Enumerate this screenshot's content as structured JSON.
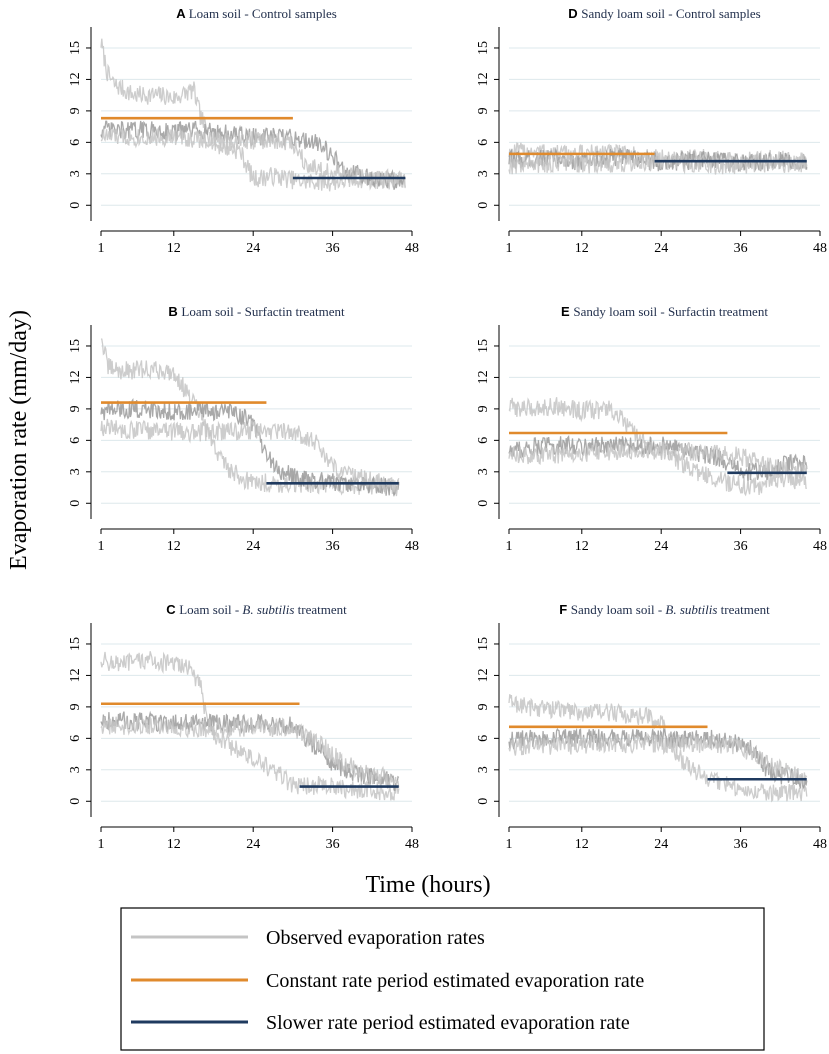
{
  "figure": {
    "ylabel": "Evaporation rate (mm/day)",
    "xlabel": "Time (hours)"
  },
  "colors": {
    "observed": "#c4c4c4",
    "observed_dark": "#9a9a9a",
    "constant": "#e08a2c",
    "slower": "#1f3a5f",
    "grid": "#dde8ec",
    "axis": "#000000"
  },
  "legend": {
    "items": [
      {
        "key": "observed",
        "label": "Observed evaporation rates"
      },
      {
        "key": "constant",
        "label": "Constant rate period estimated evaporation rate"
      },
      {
        "key": "slower",
        "label": "Slower rate period estimated evaporation rate"
      }
    ]
  },
  "chart_data": [
    {
      "id": "A",
      "letter": "A",
      "title": "Loam soil - Control samples",
      "italic": "",
      "title_suffix": "",
      "type": "line",
      "xlim": [
        1,
        48
      ],
      "ylim": [
        -1.5,
        17
      ],
      "xticks": [
        1,
        12,
        24,
        36,
        48
      ],
      "yticks": [
        0,
        3,
        6,
        9,
        12,
        15
      ],
      "constant": {
        "x0": 1,
        "x1": 30,
        "y": 8.3
      },
      "slower": {
        "x0": 30,
        "x1": 47,
        "y": 2.6
      },
      "observed": [
        {
          "x": [
            1,
            2,
            3,
            6,
            10,
            12,
            15,
            16,
            18,
            22,
            24,
            27,
            31,
            36,
            40,
            44,
            47
          ],
          "y": [
            15.5,
            12.5,
            11.5,
            10.5,
            10.5,
            10.2,
            11,
            8.5,
            5.8,
            5.2,
            2.5,
            2.8,
            2.3,
            2.2,
            2.5,
            2.4,
            2.2
          ]
        },
        {
          "x": [
            1,
            4,
            8,
            12,
            16,
            20,
            24,
            27,
            30,
            34,
            38,
            44,
            47
          ],
          "y": [
            7.2,
            7.1,
            7.2,
            7,
            7.2,
            6.8,
            6.5,
            6.5,
            6.4,
            6,
            3.2,
            2.4,
            2.2
          ]
        },
        {
          "x": [
            1,
            6,
            12,
            18,
            24,
            30,
            32,
            36,
            42,
            47
          ],
          "y": [
            6.6,
            6.5,
            6.5,
            6.2,
            6.2,
            6,
            4,
            3,
            2.6,
            2.4
          ]
        }
      ]
    },
    {
      "id": "D",
      "letter": "D",
      "title": "Sandy loam soil - Control samples",
      "italic": "",
      "title_suffix": "",
      "type": "line",
      "xlim": [
        1,
        48
      ],
      "ylim": [
        -1.5,
        17
      ],
      "xticks": [
        1,
        12,
        24,
        36,
        48
      ],
      "yticks": [
        0,
        3,
        6,
        9,
        12,
        15
      ],
      "constant": {
        "x0": 1,
        "x1": 23,
        "y": 4.9
      },
      "slower": {
        "x0": 23,
        "x1": 46,
        "y": 4.2
      },
      "observed": [
        {
          "x": [
            1,
            5,
            10,
            15,
            20,
            25,
            30,
            35,
            40,
            46
          ],
          "y": [
            5,
            5.2,
            4.8,
            5.1,
            4.7,
            4.4,
            4.5,
            4.2,
            4.4,
            4.2
          ]
        },
        {
          "x": [
            1,
            6,
            12,
            18,
            24,
            30,
            36,
            42,
            46
          ],
          "y": [
            4.3,
            4.5,
            4.2,
            4.6,
            4.1,
            4.3,
            4,
            4.2,
            4.1
          ]
        },
        {
          "x": [
            1,
            8,
            16,
            24,
            32,
            40,
            46
          ],
          "y": [
            3.8,
            4,
            3.9,
            4.2,
            3.8,
            4,
            3.9
          ]
        }
      ]
    },
    {
      "id": "B",
      "letter": "B",
      "title": "Loam soil - Surfactin treatment",
      "italic": "",
      "title_suffix": "",
      "type": "line",
      "xlim": [
        1,
        48
      ],
      "ylim": [
        -1.5,
        17
      ],
      "xticks": [
        1,
        12,
        24,
        36,
        48
      ],
      "yticks": [
        0,
        3,
        6,
        9,
        12,
        15
      ],
      "constant": {
        "x0": 1,
        "x1": 26,
        "y": 9.6
      },
      "slower": {
        "x0": 26,
        "x1": 46,
        "y": 1.9
      },
      "observed": [
        {
          "x": [
            1,
            2,
            4,
            8,
            12,
            14,
            16,
            18,
            20,
            22,
            24,
            30,
            36,
            42,
            46
          ],
          "y": [
            16,
            13,
            12.6,
            12.8,
            12.5,
            10.5,
            8.5,
            5.5,
            3.5,
            2.5,
            2,
            1.8,
            1.8,
            1.6,
            1.5
          ]
        },
        {
          "x": [
            1,
            6,
            12,
            18,
            22,
            24,
            26,
            28,
            32,
            36,
            42,
            46
          ],
          "y": [
            8.8,
            9,
            8.8,
            8.8,
            8.5,
            7.5,
            4.5,
            3,
            2.2,
            2,
            1.6,
            1.5
          ]
        },
        {
          "x": [
            1,
            6,
            12,
            18,
            24,
            30,
            34,
            36,
            40,
            44,
            46
          ],
          "y": [
            7.2,
            7,
            6.8,
            6.8,
            7,
            6.8,
            5.5,
            3.5,
            2.5,
            1.8,
            1.5
          ]
        }
      ]
    },
    {
      "id": "E",
      "letter": "E",
      "title": "Sandy loam soil - Surfactin treatment",
      "italic": "",
      "title_suffix": "",
      "type": "line",
      "xlim": [
        1,
        48
      ],
      "ylim": [
        -1.5,
        17
      ],
      "xticks": [
        1,
        12,
        24,
        36,
        48
      ],
      "yticks": [
        0,
        3,
        6,
        9,
        12,
        15
      ],
      "constant": {
        "x0": 1,
        "x1": 34,
        "y": 6.7
      },
      "slower": {
        "x0": 34,
        "x1": 46,
        "y": 2.9
      },
      "observed": [
        {
          "x": [
            1,
            4,
            8,
            12,
            16,
            18,
            20,
            22,
            24,
            28,
            30,
            34,
            38,
            42,
            46
          ],
          "y": [
            9.2,
            9,
            9.3,
            8.8,
            9,
            8,
            6.5,
            5.5,
            5,
            3.5,
            2.8,
            2,
            1.5,
            2.5,
            2
          ]
        },
        {
          "x": [
            1,
            6,
            12,
            18,
            24,
            28,
            32,
            36,
            40,
            44,
            46
          ],
          "y": [
            5,
            5.5,
            5.5,
            5.5,
            5.5,
            5,
            4.5,
            3,
            3,
            4,
            3.5
          ]
        },
        {
          "x": [
            1,
            6,
            12,
            18,
            24,
            30,
            36,
            40,
            44,
            46
          ],
          "y": [
            4.5,
            4.6,
            4.8,
            5,
            5,
            4.8,
            4.5,
            3.5,
            3,
            3.5
          ]
        }
      ]
    },
    {
      "id": "C",
      "letter": "C",
      "title": "Loam soil - ",
      "italic": "B. subtilis",
      "title_suffix": " treatment",
      "type": "line",
      "xlim": [
        1,
        48
      ],
      "ylim": [
        -1.5,
        17
      ],
      "xticks": [
        1,
        12,
        24,
        36,
        48
      ],
      "yticks": [
        0,
        3,
        6,
        9,
        12,
        15
      ],
      "constant": {
        "x0": 1,
        "x1": 31,
        "y": 9.3
      },
      "slower": {
        "x0": 31,
        "x1": 46,
        "y": 1.4
      },
      "observed": [
        {
          "x": [
            1,
            4,
            8,
            12,
            14,
            16,
            17,
            18,
            20,
            24,
            28,
            30,
            34,
            38,
            42,
            46
          ],
          "y": [
            13.5,
            13,
            13.5,
            13,
            13,
            11,
            8,
            6.5,
            5.5,
            4,
            2.5,
            1.5,
            1.5,
            1.2,
            1,
            0.8
          ]
        },
        {
          "x": [
            1,
            6,
            12,
            18,
            24,
            30,
            32,
            34,
            36,
            40,
            44,
            46
          ],
          "y": [
            7.8,
            7.6,
            7.5,
            7.4,
            7.4,
            7.2,
            6,
            5,
            3.5,
            2.5,
            2,
            1.5
          ]
        },
        {
          "x": [
            1,
            8,
            16,
            24,
            30,
            34,
            38,
            42,
            46
          ],
          "y": [
            7.2,
            7.2,
            7,
            7,
            7,
            5.5,
            3.5,
            2.5,
            2
          ]
        }
      ]
    },
    {
      "id": "F",
      "letter": "F",
      "title": "Sandy loam soil - ",
      "italic": "B. subtilis",
      "title_suffix": " treatment",
      "type": "line",
      "xlim": [
        1,
        48
      ],
      "ylim": [
        -1.5,
        17
      ],
      "xticks": [
        1,
        12,
        24,
        36,
        48
      ],
      "yticks": [
        0,
        3,
        6,
        9,
        12,
        15
      ],
      "constant": {
        "x0": 1,
        "x1": 31,
        "y": 7.1
      },
      "slower": {
        "x0": 31,
        "x1": 46,
        "y": 2.1
      },
      "observed": [
        {
          "x": [
            1,
            4,
            8,
            12,
            16,
            20,
            22,
            24,
            25,
            27,
            30,
            34,
            38,
            42,
            46
          ],
          "y": [
            9.5,
            9,
            8.8,
            8.5,
            8.5,
            8.2,
            8,
            7.5,
            6,
            4,
            2.5,
            1.5,
            1,
            0.8,
            0.8
          ]
        },
        {
          "x": [
            1,
            6,
            12,
            18,
            24,
            30,
            34,
            36,
            38,
            40,
            42,
            46
          ],
          "y": [
            5.8,
            6,
            6,
            6,
            6,
            6,
            5.8,
            5.5,
            5,
            3,
            2.5,
            2
          ]
        },
        {
          "x": [
            1,
            8,
            16,
            24,
            32,
            36,
            40,
            44,
            46
          ],
          "y": [
            5.2,
            5.3,
            5.5,
            5.5,
            5.5,
            5.2,
            3.5,
            2.5,
            2
          ]
        }
      ]
    }
  ]
}
